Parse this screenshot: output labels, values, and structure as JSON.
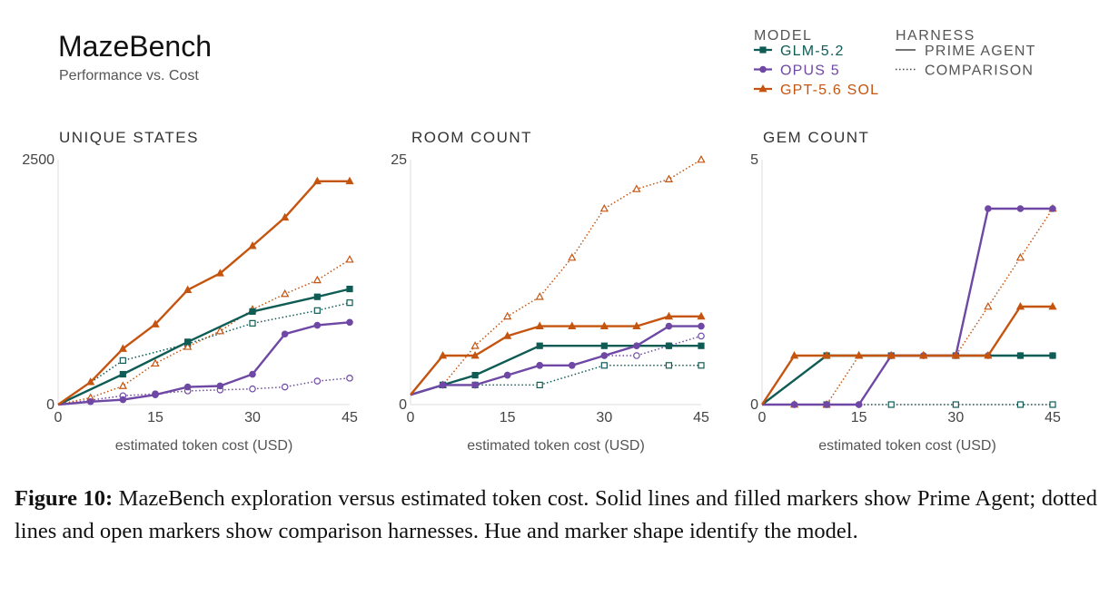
{
  "header": {
    "title": "MazeBench",
    "subtitle": "Performance vs. Cost"
  },
  "legend": {
    "model_heading": "MODEL",
    "harness_heading": "HARNESS",
    "models": [
      {
        "label": "GLM-5.2",
        "color": "#0f5c55",
        "marker": "square"
      },
      {
        "label": "OPUS 5",
        "color": "#6e48a4",
        "marker": "circle"
      },
      {
        "label": "GPT-5.6 SOL",
        "color": "#c5540f",
        "marker": "triangle"
      }
    ],
    "harnesses": [
      {
        "label": "PRIME AGENT",
        "style": "solid"
      },
      {
        "label": "COMPARISON",
        "style": "dotted"
      }
    ]
  },
  "colors": {
    "glm": "#0f5c55",
    "opus": "#6e48a4",
    "gpt": "#c5540f",
    "axis": "#dddddd",
    "text": "#333333"
  },
  "caption": {
    "label": "Figure 10:",
    "text": " MazeBench exploration versus estimated token cost. Solid lines and filled markers show Prime Agent; dotted lines and open markers show comparison harnesses. Hue and marker shape identify the model."
  },
  "chart_data": [
    {
      "type": "line",
      "title": "UNIQUE STATES",
      "xlabel": "estimated token cost (USD)",
      "ylabel": "",
      "xlim": [
        0,
        45
      ],
      "ylim": [
        0,
        2500
      ],
      "xticks": [
        0,
        15,
        30,
        45
      ],
      "yticks": [
        0,
        2500
      ],
      "series": [
        {
          "model": "GLM-5.2",
          "harness": "PRIME AGENT",
          "x": [
            0,
            10,
            20,
            30,
            40,
            45
          ],
          "y": [
            0,
            310,
            640,
            950,
            1100,
            1180
          ]
        },
        {
          "model": "GLM-5.2",
          "harness": "COMPARISON",
          "x": [
            0,
            10,
            20,
            30,
            40,
            45
          ],
          "y": [
            0,
            450,
            620,
            830,
            960,
            1040
          ]
        },
        {
          "model": "OPUS 5",
          "harness": "PRIME AGENT",
          "x": [
            0,
            5,
            10,
            15,
            20,
            25,
            30,
            35,
            40,
            45
          ],
          "y": [
            0,
            30,
            50,
            100,
            180,
            190,
            310,
            720,
            810,
            840
          ]
        },
        {
          "model": "OPUS 5",
          "harness": "COMPARISON",
          "x": [
            0,
            10,
            15,
            20,
            25,
            30,
            35,
            40,
            45
          ],
          "y": [
            0,
            90,
            110,
            140,
            150,
            160,
            180,
            240,
            270
          ]
        },
        {
          "model": "GPT-5.6 SOL",
          "harness": "PRIME AGENT",
          "x": [
            0,
            5,
            10,
            15,
            20,
            25,
            30,
            35,
            40,
            45
          ],
          "y": [
            0,
            230,
            570,
            820,
            1170,
            1340,
            1620,
            1910,
            2280,
            2280
          ]
        },
        {
          "model": "GPT-5.6 SOL",
          "harness": "COMPARISON",
          "x": [
            0,
            5,
            10,
            15,
            20,
            25,
            30,
            35,
            40,
            45
          ],
          "y": [
            0,
            70,
            190,
            420,
            590,
            750,
            970,
            1130,
            1270,
            1480
          ]
        }
      ]
    },
    {
      "type": "line",
      "title": "ROOM COUNT",
      "xlabel": "estimated token cost (USD)",
      "ylabel": "",
      "xlim": [
        0,
        45
      ],
      "ylim": [
        0,
        25
      ],
      "xticks": [
        0,
        15,
        30,
        45
      ],
      "yticks": [
        0,
        25
      ],
      "series": [
        {
          "model": "GLM-5.2",
          "harness": "PRIME AGENT",
          "x": [
            0,
            5,
            10,
            20,
            30,
            40,
            45
          ],
          "y": [
            1,
            2,
            3,
            6,
            6,
            6,
            6
          ]
        },
        {
          "model": "GLM-5.2",
          "harness": "COMPARISON",
          "x": [
            0,
            5,
            10,
            20,
            30,
            40,
            45
          ],
          "y": [
            1,
            2,
            2,
            2,
            4,
            4,
            4
          ]
        },
        {
          "model": "OPUS 5",
          "harness": "PRIME AGENT",
          "x": [
            0,
            5,
            10,
            15,
            20,
            25,
            30,
            35,
            40,
            45
          ],
          "y": [
            1,
            2,
            2,
            3,
            4,
            4,
            5,
            6,
            8,
            8
          ]
        },
        {
          "model": "OPUS 5",
          "harness": "COMPARISON",
          "x": [
            0,
            5,
            10,
            15,
            20,
            25,
            30,
            35,
            40,
            45
          ],
          "y": [
            1,
            2,
            2,
            3,
            4,
            4,
            5,
            5,
            6,
            7
          ]
        },
        {
          "model": "GPT-5.6 SOL",
          "harness": "PRIME AGENT",
          "x": [
            0,
            5,
            10,
            15,
            20,
            25,
            30,
            35,
            40,
            45
          ],
          "y": [
            1,
            5,
            5,
            7,
            8,
            8,
            8,
            8,
            9,
            9
          ]
        },
        {
          "model": "GPT-5.6 SOL",
          "harness": "COMPARISON",
          "x": [
            0,
            5,
            10,
            15,
            20,
            25,
            30,
            35,
            40,
            45
          ],
          "y": [
            1,
            2,
            6,
            9,
            11,
            15,
            20,
            22,
            23,
            25
          ]
        }
      ]
    },
    {
      "type": "line",
      "title": "GEM COUNT",
      "xlabel": "estimated token cost (USD)",
      "ylabel": "",
      "xlim": [
        0,
        45
      ],
      "ylim": [
        0,
        5
      ],
      "xticks": [
        0,
        15,
        30,
        45
      ],
      "yticks": [
        0,
        5
      ],
      "series": [
        {
          "model": "GLM-5.2",
          "harness": "PRIME AGENT",
          "x": [
            0,
            10,
            20,
            30,
            40,
            45
          ],
          "y": [
            0,
            1,
            1,
            1,
            1,
            1
          ]
        },
        {
          "model": "GLM-5.2",
          "harness": "COMPARISON",
          "x": [
            0,
            10,
            20,
            30,
            40,
            45
          ],
          "y": [
            0,
            0,
            0,
            0,
            0,
            0
          ]
        },
        {
          "model": "OPUS 5",
          "harness": "PRIME AGENT",
          "x": [
            0,
            5,
            10,
            15,
            20,
            25,
            30,
            35,
            40,
            45
          ],
          "y": [
            0,
            0,
            0,
            0,
            1,
            1,
            1,
            4,
            4,
            4
          ]
        },
        {
          "model": "OPUS 5",
          "harness": "COMPARISON",
          "x": [
            0,
            5,
            10,
            15,
            20,
            25,
            30,
            35,
            40,
            45
          ],
          "y": [
            0,
            0,
            0,
            0,
            1,
            1,
            1,
            1,
            1,
            1
          ]
        },
        {
          "model": "GPT-5.6 SOL",
          "harness": "PRIME AGENT",
          "x": [
            0,
            5,
            10,
            15,
            20,
            25,
            30,
            35,
            40,
            45
          ],
          "y": [
            0,
            1,
            1,
            1,
            1,
            1,
            1,
            1,
            2,
            2
          ]
        },
        {
          "model": "GPT-5.6 SOL",
          "harness": "COMPARISON",
          "x": [
            0,
            5,
            10,
            15,
            20,
            25,
            30,
            35,
            40,
            45
          ],
          "y": [
            0,
            0,
            0,
            1,
            1,
            1,
            1,
            2,
            3,
            4
          ]
        }
      ]
    }
  ]
}
